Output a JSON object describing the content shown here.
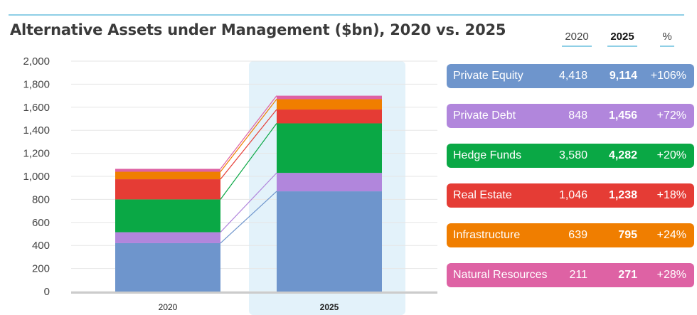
{
  "title": "Alternative Assets under Management ($bn), 2020 vs. 2025",
  "columns": {
    "c2020": "2020",
    "c2025": "2025",
    "pct": "%"
  },
  "colors": {
    "private_equity": "#6e95cc",
    "private_debt": "#b186dc",
    "hedge_funds": "#0aa845",
    "real_estate": "#e53c35",
    "infrastructure": "#f07e00",
    "natural_resources": "#de62a4",
    "highlight": "#e3f2fa",
    "grid": "#e6e6e6",
    "axis": "#cccccc"
  },
  "legend": [
    {
      "name": "Private Equity",
      "v2020": "4,418",
      "v2025": "9,114",
      "pct": "+106%",
      "color": "#6e95cc"
    },
    {
      "name": "Private Debt",
      "v2020": "848",
      "v2025": "1,456",
      "pct": "+72%",
      "color": "#b186dc"
    },
    {
      "name": "Hedge Funds",
      "v2020": "3,580",
      "v2025": "4,282",
      "pct": "+20%",
      "color": "#0aa845"
    },
    {
      "name": "Real Estate",
      "v2020": "1,046",
      "v2025": "1,238",
      "pct": "+18%",
      "color": "#e53c35"
    },
    {
      "name": "Infrastructure",
      "v2020": "639",
      "v2025": "795",
      "pct": "+24%",
      "color": "#f07e00"
    },
    {
      "name": "Natural Resources",
      "v2020": "211",
      "v2025": "271",
      "pct": "+28%",
      "color": "#de62a4"
    }
  ],
  "chart_data": {
    "type": "bar",
    "stacked": true,
    "categories": [
      "2020",
      "2025"
    ],
    "highlighted_category": "2025",
    "ylim": [
      0,
      2000
    ],
    "yticks": [
      "0",
      "200",
      "400",
      "600",
      "800",
      "1,000",
      "1,200",
      "1,400",
      "1,600",
      "1,800",
      "2,000"
    ],
    "ytick_values": [
      0,
      200,
      400,
      600,
      800,
      1000,
      1200,
      1400,
      1600,
      1800,
      2000
    ],
    "grid": true,
    "connector_lines": true,
    "series": [
      {
        "name": "Private Equity",
        "values": [
          420,
          870
        ],
        "color": "#6e95cc"
      },
      {
        "name": "Private Debt",
        "values": [
          95,
          160
        ],
        "color": "#b186dc"
      },
      {
        "name": "Hedge Funds",
        "values": [
          285,
          430
        ],
        "color": "#0aa845"
      },
      {
        "name": "Real Estate",
        "values": [
          175,
          120
        ],
        "color": "#e53c35"
      },
      {
        "name": "Infrastructure",
        "values": [
          65,
          90
        ],
        "color": "#f07e00"
      },
      {
        "name": "Natural Resources",
        "values": [
          25,
          30
        ],
        "color": "#de62a4"
      }
    ]
  }
}
